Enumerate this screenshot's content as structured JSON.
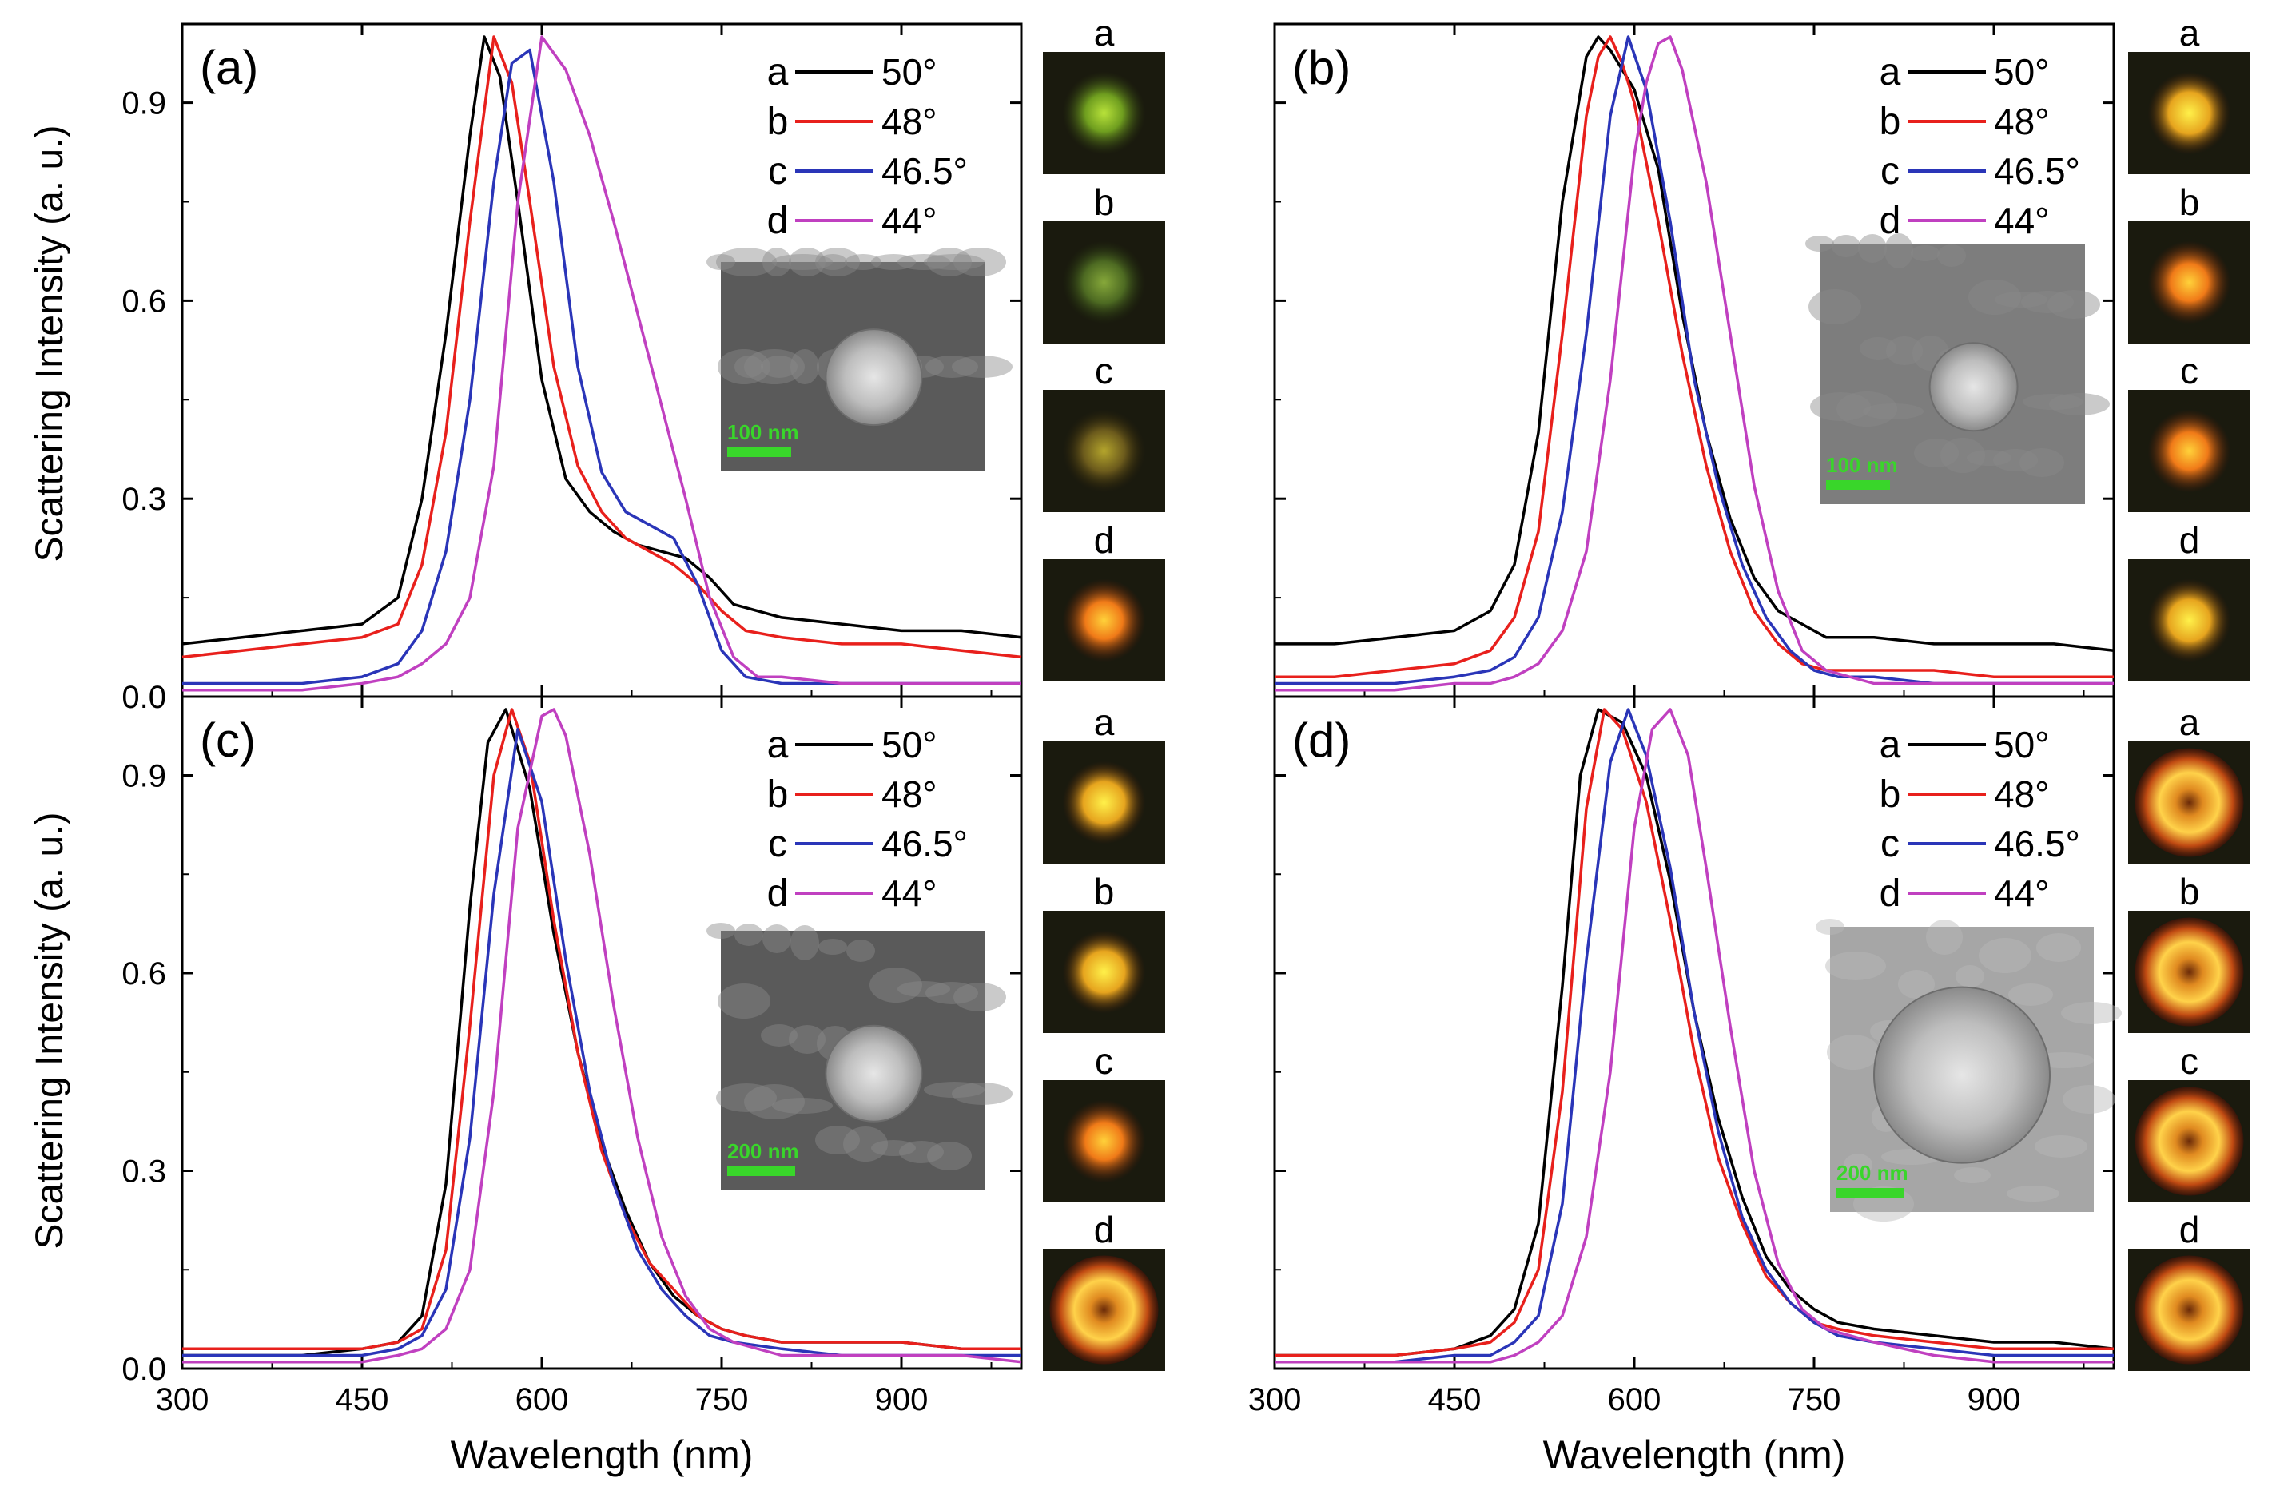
{
  "figure": {
    "ylabel": "Scattering Intensity (a. u.)",
    "xlabel": "Wavelength (nm)",
    "xlim": [
      300,
      1000
    ],
    "ylim": [
      0,
      1.0
    ],
    "xticks": [
      300,
      450,
      600,
      750,
      900
    ],
    "yticks": [
      0.0,
      0.3,
      0.6,
      0.9
    ],
    "ytick_labels": [
      "0.0",
      "0.3",
      "0.6",
      "0.9"
    ]
  },
  "colors": {
    "a": "#000000",
    "b": "#e8201c",
    "c": "#2a35b8",
    "d": "#c040c0",
    "scale": "#39d62a"
  },
  "chart_data": [
    {
      "type": "line",
      "panel": "(a)",
      "xlabel": "Wavelength (nm)",
      "ylabel": "Scattering Intensity (a. u.)",
      "xlim": [
        300,
        1000
      ],
      "ylim": [
        0,
        1.0
      ],
      "legend": [
        {
          "letter": "a",
          "label": "50°"
        },
        {
          "letter": "b",
          "label": "48°"
        },
        {
          "letter": "c",
          "label": "46.5°"
        },
        {
          "letter": "d",
          "label": "44°"
        }
      ],
      "inset_scale": "100 nm",
      "thumbnail_labels": [
        "a",
        "b",
        "c",
        "d"
      ],
      "series": [
        {
          "name": "a",
          "x": [
            300,
            350,
            400,
            450,
            480,
            500,
            520,
            540,
            552,
            565,
            580,
            600,
            620,
            640,
            660,
            680,
            700,
            720,
            740,
            760,
            800,
            850,
            900,
            950,
            1000
          ],
          "y": [
            0.08,
            0.09,
            0.1,
            0.11,
            0.15,
            0.3,
            0.55,
            0.85,
            1.0,
            0.94,
            0.75,
            0.48,
            0.33,
            0.28,
            0.25,
            0.23,
            0.22,
            0.21,
            0.18,
            0.14,
            0.12,
            0.11,
            0.1,
            0.1,
            0.09
          ]
        },
        {
          "name": "b",
          "x": [
            300,
            350,
            400,
            450,
            480,
            500,
            520,
            540,
            560,
            575,
            590,
            610,
            630,
            650,
            670,
            690,
            710,
            730,
            750,
            770,
            800,
            850,
            900,
            950,
            1000
          ],
          "y": [
            0.06,
            0.07,
            0.08,
            0.09,
            0.11,
            0.2,
            0.4,
            0.72,
            1.0,
            0.93,
            0.75,
            0.5,
            0.35,
            0.28,
            0.24,
            0.22,
            0.2,
            0.17,
            0.13,
            0.1,
            0.09,
            0.08,
            0.08,
            0.07,
            0.06
          ]
        },
        {
          "name": "c",
          "x": [
            300,
            350,
            400,
            450,
            480,
            500,
            520,
            540,
            560,
            575,
            590,
            610,
            630,
            650,
            670,
            690,
            710,
            730,
            750,
            770,
            800,
            850,
            900,
            950,
            1000
          ],
          "y": [
            0.02,
            0.02,
            0.02,
            0.03,
            0.05,
            0.1,
            0.22,
            0.45,
            0.78,
            0.96,
            0.98,
            0.78,
            0.5,
            0.34,
            0.28,
            0.26,
            0.24,
            0.17,
            0.07,
            0.03,
            0.02,
            0.02,
            0.02,
            0.02,
            0.02
          ]
        },
        {
          "name": "d",
          "x": [
            300,
            350,
            400,
            450,
            480,
            500,
            520,
            540,
            560,
            580,
            600,
            620,
            640,
            660,
            680,
            700,
            720,
            740,
            760,
            780,
            800,
            850,
            900,
            950,
            1000
          ],
          "y": [
            0.01,
            0.01,
            0.01,
            0.02,
            0.03,
            0.05,
            0.08,
            0.15,
            0.35,
            0.75,
            1.0,
            0.95,
            0.85,
            0.72,
            0.58,
            0.44,
            0.3,
            0.15,
            0.06,
            0.03,
            0.03,
            0.02,
            0.02,
            0.02,
            0.02
          ]
        }
      ]
    },
    {
      "type": "line",
      "panel": "(b)",
      "xlabel": "Wavelength (nm)",
      "ylabel": "Scattering Intensity (a. u.)",
      "xlim": [
        300,
        1000
      ],
      "ylim": [
        0,
        1.0
      ],
      "legend": [
        {
          "letter": "a",
          "label": "50°"
        },
        {
          "letter": "b",
          "label": "48°"
        },
        {
          "letter": "c",
          "label": "46.5°"
        },
        {
          "letter": "d",
          "label": "44°"
        }
      ],
      "inset_scale": "100 nm",
      "thumbnail_labels": [
        "a",
        "b",
        "c",
        "d"
      ],
      "series": [
        {
          "name": "a",
          "x": [
            300,
            350,
            400,
            450,
            480,
            500,
            520,
            540,
            560,
            570,
            580,
            600,
            620,
            640,
            660,
            680,
            700,
            720,
            740,
            760,
            800,
            850,
            900,
            950,
            1000
          ],
          "y": [
            0.08,
            0.08,
            0.09,
            0.1,
            0.13,
            0.2,
            0.4,
            0.75,
            0.97,
            1.0,
            0.98,
            0.92,
            0.8,
            0.58,
            0.4,
            0.27,
            0.18,
            0.13,
            0.11,
            0.09,
            0.09,
            0.08,
            0.08,
            0.08,
            0.07
          ]
        },
        {
          "name": "b",
          "x": [
            300,
            350,
            400,
            450,
            480,
            500,
            520,
            540,
            560,
            570,
            580,
            590,
            600,
            620,
            640,
            660,
            680,
            700,
            720,
            740,
            760,
            800,
            850,
            900,
            1000
          ],
          "y": [
            0.03,
            0.03,
            0.04,
            0.05,
            0.07,
            0.12,
            0.25,
            0.55,
            0.88,
            0.97,
            1.0,
            0.96,
            0.9,
            0.72,
            0.52,
            0.35,
            0.22,
            0.13,
            0.08,
            0.05,
            0.04,
            0.04,
            0.04,
            0.03,
            0.03
          ]
        },
        {
          "name": "c",
          "x": [
            300,
            350,
            400,
            450,
            480,
            500,
            520,
            540,
            560,
            580,
            595,
            610,
            630,
            650,
            670,
            690,
            710,
            730,
            750,
            770,
            800,
            850,
            900,
            950,
            1000
          ],
          "y": [
            0.02,
            0.02,
            0.02,
            0.03,
            0.04,
            0.06,
            0.12,
            0.28,
            0.55,
            0.88,
            1.0,
            0.92,
            0.72,
            0.48,
            0.32,
            0.2,
            0.12,
            0.07,
            0.04,
            0.03,
            0.03,
            0.02,
            0.02,
            0.02,
            0.02
          ]
        },
        {
          "name": "d",
          "x": [
            300,
            350,
            400,
            450,
            480,
            500,
            520,
            540,
            560,
            580,
            600,
            610,
            620,
            630,
            640,
            660,
            680,
            700,
            720,
            740,
            760,
            800,
            850,
            900,
            1000
          ],
          "y": [
            0.01,
            0.01,
            0.01,
            0.02,
            0.02,
            0.03,
            0.05,
            0.1,
            0.22,
            0.48,
            0.82,
            0.93,
            0.99,
            1.0,
            0.95,
            0.78,
            0.55,
            0.32,
            0.16,
            0.07,
            0.04,
            0.02,
            0.02,
            0.02,
            0.02
          ]
        }
      ]
    },
    {
      "type": "line",
      "panel": "(c)",
      "xlabel": "Wavelength (nm)",
      "ylabel": "Scattering Intensity (a. u.)",
      "xlim": [
        300,
        1000
      ],
      "ylim": [
        0,
        1.0
      ],
      "legend": [
        {
          "letter": "a",
          "label": "50°"
        },
        {
          "letter": "b",
          "label": "48°"
        },
        {
          "letter": "c",
          "label": "46.5°"
        },
        {
          "letter": "d",
          "label": "44°"
        }
      ],
      "inset_scale": "200 nm",
      "thumbnail_labels": [
        "a",
        "b",
        "c",
        "d"
      ],
      "series": [
        {
          "name": "a",
          "x": [
            300,
            350,
            400,
            450,
            480,
            500,
            520,
            540,
            555,
            570,
            590,
            610,
            630,
            650,
            670,
            690,
            710,
            730,
            750,
            770,
            800,
            850,
            900,
            950,
            1000
          ],
          "y": [
            0.02,
            0.02,
            0.02,
            0.03,
            0.04,
            0.08,
            0.28,
            0.7,
            0.95,
            1.0,
            0.88,
            0.66,
            0.48,
            0.34,
            0.24,
            0.16,
            0.11,
            0.08,
            0.06,
            0.05,
            0.04,
            0.04,
            0.04,
            0.03,
            0.03
          ]
        },
        {
          "name": "b",
          "x": [
            300,
            350,
            400,
            450,
            480,
            500,
            520,
            540,
            560,
            575,
            590,
            610,
            630,
            650,
            670,
            690,
            710,
            730,
            750,
            770,
            800,
            850,
            900,
            950,
            1000
          ],
          "y": [
            0.03,
            0.03,
            0.03,
            0.03,
            0.04,
            0.06,
            0.18,
            0.52,
            0.9,
            1.0,
            0.92,
            0.68,
            0.48,
            0.33,
            0.23,
            0.16,
            0.12,
            0.08,
            0.06,
            0.05,
            0.04,
            0.04,
            0.04,
            0.03,
            0.03
          ]
        },
        {
          "name": "c",
          "x": [
            300,
            350,
            400,
            450,
            480,
            500,
            520,
            540,
            560,
            580,
            600,
            620,
            640,
            660,
            680,
            700,
            720,
            740,
            760,
            800,
            850,
            900,
            950,
            1000
          ],
          "y": [
            0.02,
            0.02,
            0.02,
            0.02,
            0.03,
            0.05,
            0.12,
            0.35,
            0.72,
            0.97,
            0.86,
            0.62,
            0.42,
            0.28,
            0.18,
            0.12,
            0.08,
            0.05,
            0.04,
            0.03,
            0.02,
            0.02,
            0.02,
            0.02
          ]
        },
        {
          "name": "d",
          "x": [
            300,
            350,
            400,
            450,
            480,
            500,
            520,
            540,
            560,
            580,
            600,
            610,
            620,
            640,
            660,
            680,
            700,
            720,
            740,
            760,
            800,
            850,
            900,
            950,
            1000
          ],
          "y": [
            0.01,
            0.01,
            0.01,
            0.01,
            0.02,
            0.03,
            0.06,
            0.15,
            0.42,
            0.82,
            0.99,
            1.0,
            0.96,
            0.78,
            0.55,
            0.35,
            0.2,
            0.11,
            0.06,
            0.04,
            0.02,
            0.02,
            0.02,
            0.02,
            0.01
          ]
        }
      ]
    },
    {
      "type": "line",
      "panel": "(d)",
      "xlabel": "Wavelength (nm)",
      "ylabel": "Scattering Intensity (a. u.)",
      "xlim": [
        300,
        1000
      ],
      "ylim": [
        0,
        1.0
      ],
      "legend": [
        {
          "letter": "a",
          "label": "50°"
        },
        {
          "letter": "b",
          "label": "48°"
        },
        {
          "letter": "c",
          "label": "46.5°"
        },
        {
          "letter": "d",
          "label": "44°"
        }
      ],
      "inset_scale": "200 nm",
      "thumbnail_labels": [
        "a",
        "b",
        "c",
        "d"
      ],
      "series": [
        {
          "name": "a",
          "x": [
            300,
            350,
            400,
            450,
            480,
            500,
            520,
            540,
            555,
            570,
            590,
            610,
            630,
            650,
            670,
            690,
            710,
            730,
            750,
            770,
            800,
            850,
            900,
            950,
            1000
          ],
          "y": [
            0.02,
            0.02,
            0.02,
            0.03,
            0.05,
            0.09,
            0.22,
            0.58,
            0.9,
            1.0,
            0.98,
            0.9,
            0.74,
            0.54,
            0.38,
            0.26,
            0.17,
            0.12,
            0.09,
            0.07,
            0.06,
            0.05,
            0.04,
            0.04,
            0.03
          ]
        },
        {
          "name": "b",
          "x": [
            300,
            350,
            400,
            450,
            480,
            500,
            520,
            540,
            560,
            575,
            590,
            610,
            630,
            650,
            670,
            690,
            710,
            730,
            750,
            770,
            800,
            850,
            900,
            950,
            1000
          ],
          "y": [
            0.02,
            0.02,
            0.02,
            0.03,
            0.04,
            0.07,
            0.15,
            0.42,
            0.85,
            1.0,
            0.97,
            0.86,
            0.68,
            0.48,
            0.32,
            0.22,
            0.14,
            0.1,
            0.07,
            0.06,
            0.05,
            0.04,
            0.03,
            0.03,
            0.03
          ]
        },
        {
          "name": "c",
          "x": [
            300,
            350,
            400,
            450,
            480,
            500,
            520,
            540,
            560,
            580,
            595,
            610,
            630,
            650,
            670,
            690,
            710,
            730,
            750,
            770,
            800,
            850,
            900,
            950,
            1000
          ],
          "y": [
            0.01,
            0.01,
            0.01,
            0.02,
            0.02,
            0.04,
            0.08,
            0.25,
            0.62,
            0.92,
            1.0,
            0.93,
            0.76,
            0.54,
            0.36,
            0.23,
            0.15,
            0.1,
            0.07,
            0.05,
            0.04,
            0.03,
            0.02,
            0.02,
            0.02
          ]
        },
        {
          "name": "d",
          "x": [
            300,
            350,
            400,
            450,
            480,
            500,
            520,
            540,
            560,
            580,
            600,
            615,
            630,
            645,
            660,
            680,
            700,
            720,
            740,
            760,
            800,
            850,
            900,
            950,
            1000
          ],
          "y": [
            0.01,
            0.01,
            0.01,
            0.01,
            0.01,
            0.02,
            0.04,
            0.08,
            0.2,
            0.45,
            0.82,
            0.97,
            1.0,
            0.93,
            0.76,
            0.52,
            0.3,
            0.16,
            0.09,
            0.06,
            0.04,
            0.02,
            0.01,
            0.01,
            0.01
          ]
        }
      ]
    }
  ]
}
